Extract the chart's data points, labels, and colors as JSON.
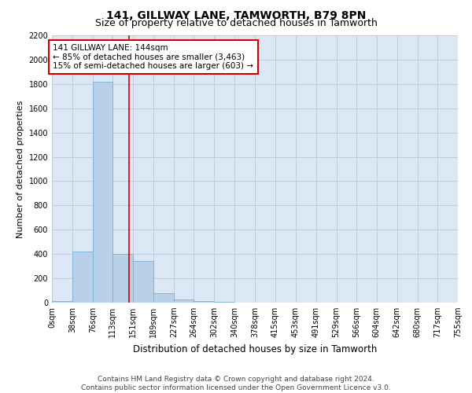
{
  "title": "141, GILLWAY LANE, TAMWORTH, B79 8PN",
  "subtitle": "Size of property relative to detached houses in Tamworth",
  "xlabel": "Distribution of detached houses by size in Tamworth",
  "ylabel": "Number of detached properties",
  "footer_line1": "Contains HM Land Registry data © Crown copyright and database right 2024.",
  "footer_line2": "Contains public sector information licensed under the Open Government Licence v3.0.",
  "bar_edges": [
    0,
    38,
    76,
    113,
    151,
    189,
    227,
    264,
    302,
    340,
    378,
    415,
    453,
    491,
    529,
    566,
    604,
    642,
    680,
    717,
    755
  ],
  "bar_heights": [
    15,
    420,
    1820,
    400,
    340,
    75,
    25,
    15,
    5,
    0,
    0,
    0,
    0,
    0,
    0,
    0,
    0,
    0,
    0,
    0
  ],
  "bar_color": "#b8d0e8",
  "bar_edgecolor": "#7aafd4",
  "vline_x": 144,
  "vline_color": "#cc0000",
  "ylim_max": 2200,
  "yticks": [
    0,
    200,
    400,
    600,
    800,
    1000,
    1200,
    1400,
    1600,
    1800,
    2000,
    2200
  ],
  "annotation_line1": "141 GILLWAY LANE: 144sqm",
  "annotation_line2": "← 85% of detached houses are smaller (3,463)",
  "annotation_line3": "15% of semi-detached houses are larger (603) →",
  "annotation_box_facecolor": "#ffffff",
  "annotation_box_edgecolor": "#cc0000",
  "plot_bg_color": "#dce8f5",
  "fig_bg_color": "#ffffff",
  "grid_color": "#c0ccd8",
  "title_fontsize": 10,
  "subtitle_fontsize": 9,
  "ylabel_fontsize": 8,
  "xlabel_fontsize": 8.5,
  "tick_fontsize": 7,
  "annotation_fontsize": 7.5,
  "footer_fontsize": 6.5
}
